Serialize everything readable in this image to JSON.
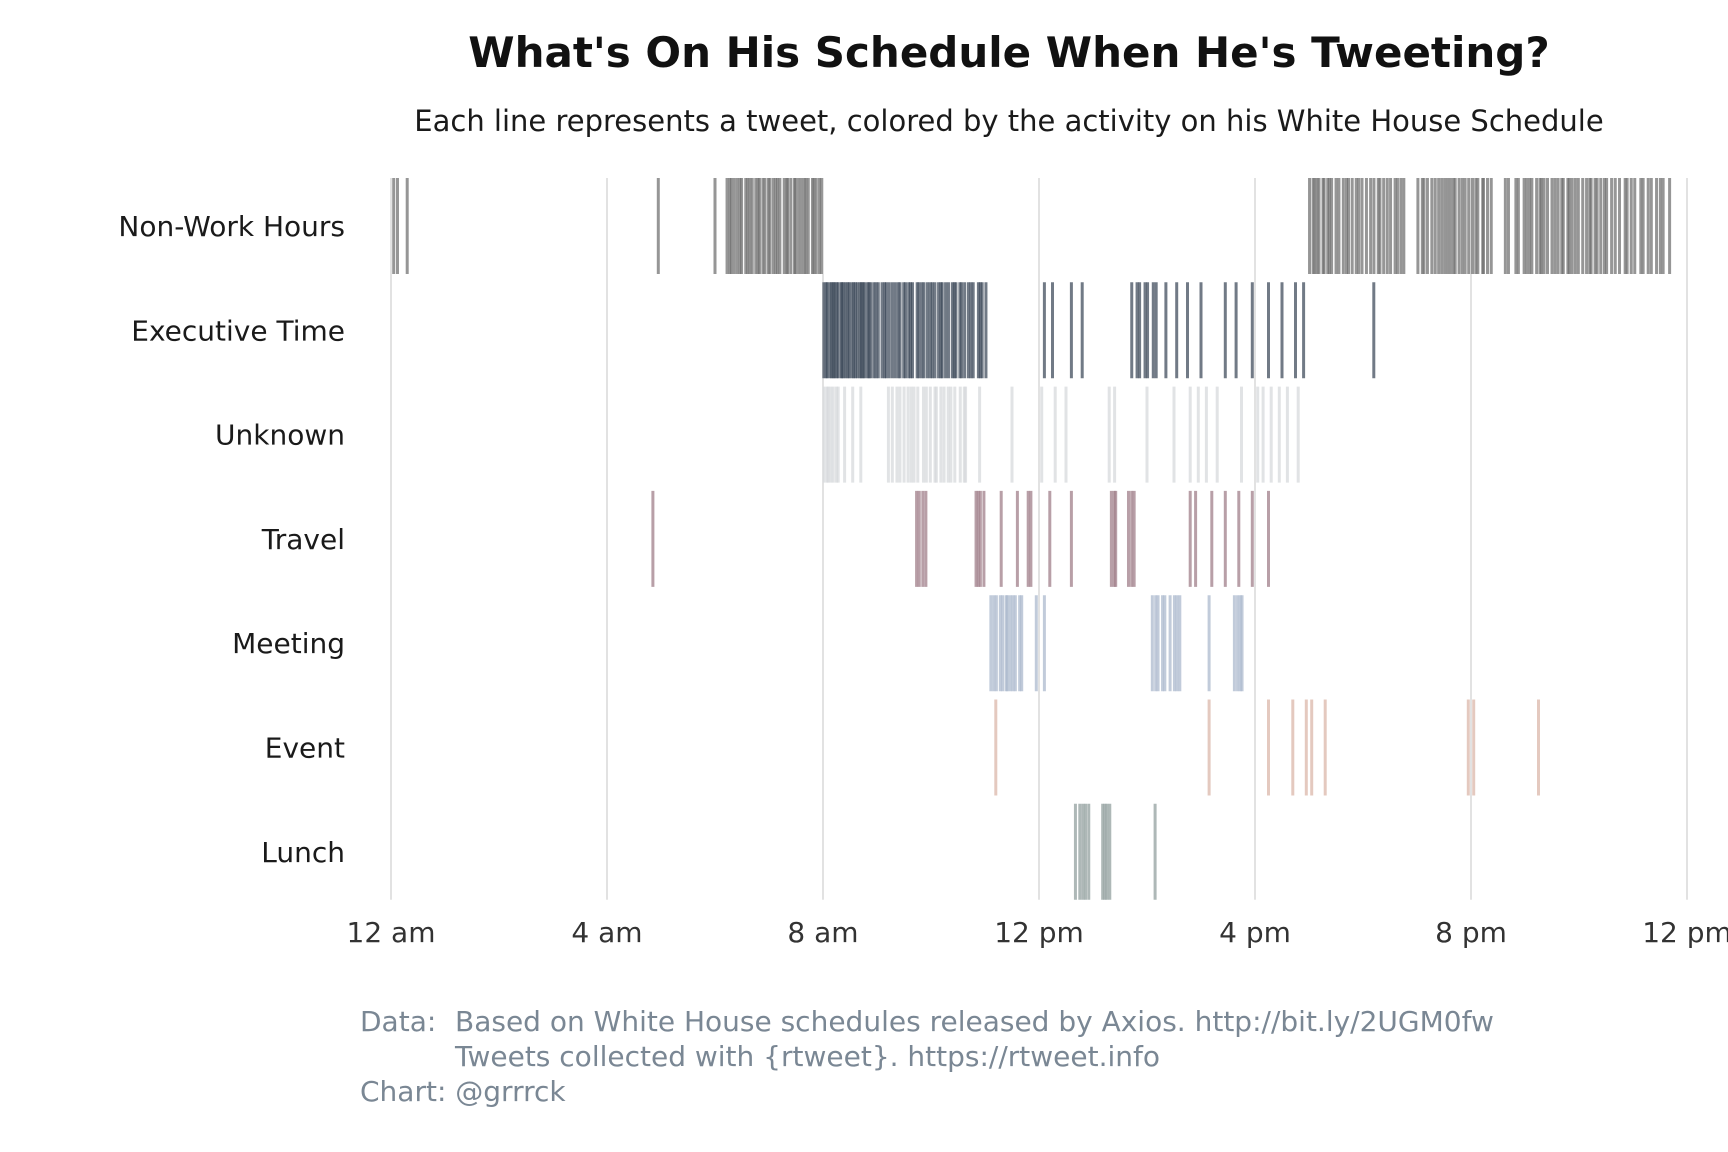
{
  "chart_data": {
    "type": "strip",
    "title": "What's On His Schedule When He's Tweeting?",
    "subtitle": "Each line represents a tweet, colored by the activity on his White House Schedule",
    "x_axis": {
      "unit": "hours since midnight",
      "range": [
        0,
        24
      ],
      "ticks": [
        0,
        4,
        8,
        12,
        16,
        20,
        24
      ],
      "tick_labels": [
        "12 am",
        "4 am",
        "8 am",
        "12 pm",
        "4 pm",
        "8 pm",
        "12 pm"
      ]
    },
    "grid": true,
    "categories": [
      "Non-Work Hours",
      "Executive Time",
      "Unknown",
      "Travel",
      "Meeting",
      "Event",
      "Lunch"
    ],
    "series": [
      {
        "category": "Non-Work Hours",
        "color": "#6e6e6e",
        "ranges": [
          {
            "start": 6.2,
            "end": 8.0,
            "count": 38
          },
          {
            "start": 17.0,
            "end": 17.4,
            "count": 9
          },
          {
            "start": 17.4,
            "end": 18.8,
            "count": 22
          },
          {
            "start": 19.0,
            "end": 20.4,
            "count": 24
          },
          {
            "start": 20.6,
            "end": 21.0,
            "count": 5
          },
          {
            "start": 21.0,
            "end": 22.5,
            "count": 26
          },
          {
            "start": 22.5,
            "end": 23.7,
            "count": 16
          }
        ],
        "times": [
          0.05,
          0.12,
          0.3,
          4.95,
          6.0
        ]
      },
      {
        "category": "Executive Time",
        "color": "#3a4657",
        "ranges": [
          {
            "start": 8.0,
            "end": 8.9,
            "count": 26
          },
          {
            "start": 8.9,
            "end": 9.6,
            "count": 14
          },
          {
            "start": 9.6,
            "end": 10.5,
            "count": 18
          },
          {
            "start": 10.5,
            "end": 11.05,
            "count": 10
          },
          {
            "start": 13.7,
            "end": 14.2,
            "count": 7
          }
        ],
        "times": [
          12.1,
          12.25,
          12.6,
          12.8,
          14.35,
          14.55,
          14.75,
          15.0,
          15.45,
          15.65,
          15.95,
          16.25,
          16.5,
          16.75,
          16.9,
          18.2
        ]
      },
      {
        "category": "Unknown",
        "color": "#d6d8db",
        "ranges": [
          {
            "start": 8.0,
            "end": 8.3,
            "count": 7
          },
          {
            "start": 9.2,
            "end": 10.7,
            "count": 22
          }
        ],
        "times": [
          8.4,
          8.55,
          8.7,
          10.9,
          11.5,
          12.05,
          12.3,
          12.5,
          13.3,
          13.4,
          14.0,
          14.5,
          14.8,
          14.95,
          15.1,
          15.3,
          15.75,
          16.05,
          16.15,
          16.3,
          16.45,
          16.6,
          16.8
        ]
      },
      {
        "category": "Travel",
        "color": "#9c7a85",
        "ranges": [
          {
            "start": 9.7,
            "end": 9.95,
            "count": 4
          },
          {
            "start": 10.8,
            "end": 11.0,
            "count": 4
          },
          {
            "start": 13.3,
            "end": 13.45,
            "count": 3
          },
          {
            "start": 13.6,
            "end": 13.8,
            "count": 3
          }
        ],
        "times": [
          4.85,
          11.3,
          11.6,
          11.8,
          11.85,
          12.2,
          12.6,
          14.8,
          14.9,
          15.2,
          15.45,
          15.7,
          15.95,
          16.25
        ]
      },
      {
        "category": "Meeting",
        "color": "#a9b7cc",
        "ranges": [
          {
            "start": 11.1,
            "end": 11.7,
            "count": 12
          },
          {
            "start": 14.05,
            "end": 14.65,
            "count": 9
          },
          {
            "start": 15.6,
            "end": 15.8,
            "count": 4
          }
        ],
        "times": [
          11.95,
          12.1,
          15.15
        ]
      },
      {
        "category": "Event",
        "color": "#d9b4a6",
        "ranges": [],
        "times": [
          11.2,
          15.15,
          16.25,
          16.7,
          16.95,
          17.05,
          17.3,
          19.95,
          20.05,
          21.25
        ]
      },
      {
        "category": "Lunch",
        "color": "#8f9c9b",
        "ranges": [
          {
            "start": 12.65,
            "end": 12.95,
            "count": 5
          },
          {
            "start": 13.15,
            "end": 13.35,
            "count": 4
          }
        ],
        "times": [
          14.15
        ]
      }
    ]
  },
  "caption": {
    "data_key": "Data:",
    "data_line1": "Based on White House schedules released by Axios. http://bit.ly/2UGM0fw",
    "data_line2": "Tweets collected with {rtweet}. https://rtweet.info",
    "chart_credit": "Chart: @grrrck"
  }
}
